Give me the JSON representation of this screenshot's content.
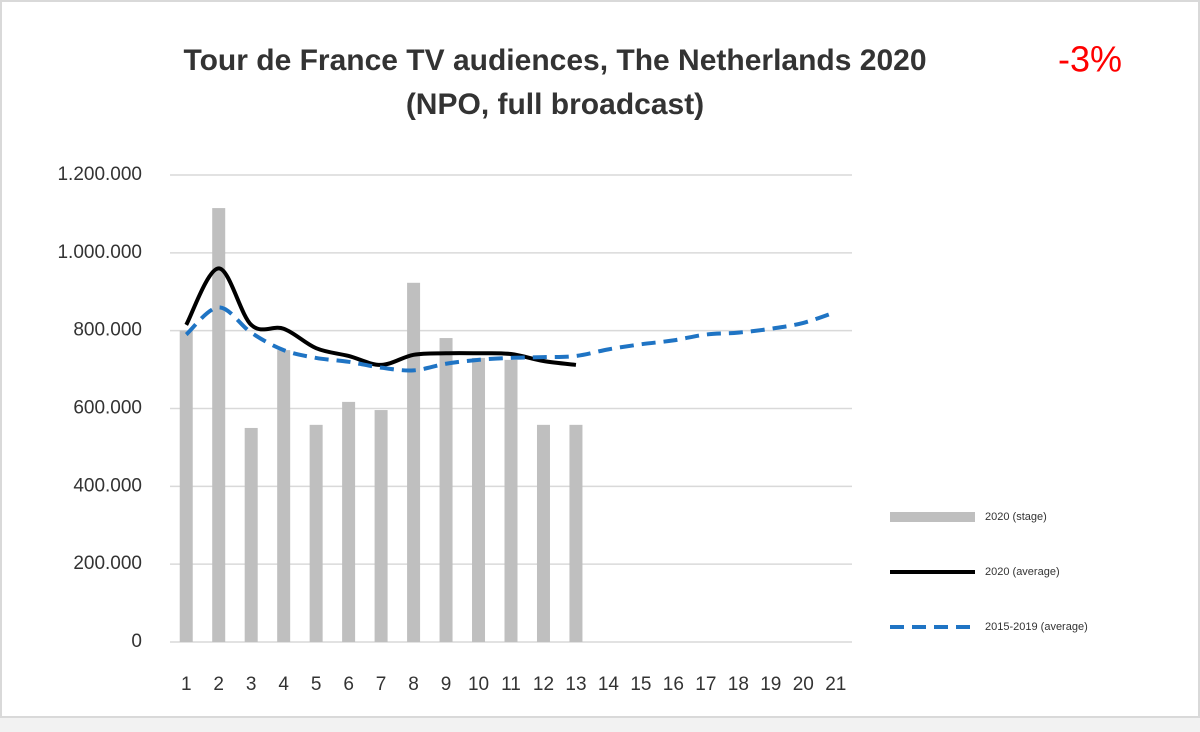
{
  "chart_data": {
    "type": "bar_line",
    "title": "Tour de France TV audiences, The Netherlands 2020",
    "subtitle": "(NPO, full broadcast)",
    "annotation": "-3%",
    "categories": [
      "1",
      "2",
      "3",
      "4",
      "5",
      "6",
      "7",
      "8",
      "9",
      "10",
      "11",
      "12",
      "13",
      "14",
      "15",
      "16",
      "17",
      "18",
      "19",
      "20",
      "21"
    ],
    "series": [
      {
        "name": "2020 (stage)",
        "type": "bar",
        "color": "#bfbfbf",
        "values": [
          800000,
          1115000,
          550000,
          750000,
          558000,
          617000,
          596000,
          923000,
          781000,
          730000,
          725000,
          558000,
          558000,
          null,
          null,
          null,
          null,
          null,
          null,
          null,
          null
        ]
      },
      {
        "name": "2020 (average)",
        "type": "line",
        "color": "#000000",
        "dash": false,
        "values": [
          815000,
          960000,
          815000,
          805000,
          755000,
          735000,
          712000,
          738000,
          742000,
          742000,
          740000,
          722000,
          712000,
          null,
          null,
          null,
          null,
          null,
          null,
          null,
          null
        ]
      },
      {
        "name": "2015-2019 (average)",
        "type": "line",
        "color": "#1f74c4",
        "dash": true,
        "values": [
          790000,
          860000,
          795000,
          750000,
          730000,
          720000,
          705000,
          698000,
          715000,
          725000,
          730000,
          732000,
          735000,
          752000,
          765000,
          775000,
          790000,
          795000,
          805000,
          820000,
          848000
        ]
      }
    ],
    "ylim": [
      0,
      1200000
    ],
    "yticks": [
      0,
      {
        "value": 200000,
        "label": "200.000"
      },
      {
        "value": 400000,
        "label": "400.000"
      },
      {
        "value": 600000,
        "label": "600.000"
      },
      {
        "value": 800000,
        "label": "800.000"
      },
      {
        "value": 1000000,
        "label": "1.000.000"
      },
      {
        "value": 1200000,
        "label": "1.200.000"
      }
    ],
    "grid": true,
    "legend": "right"
  }
}
